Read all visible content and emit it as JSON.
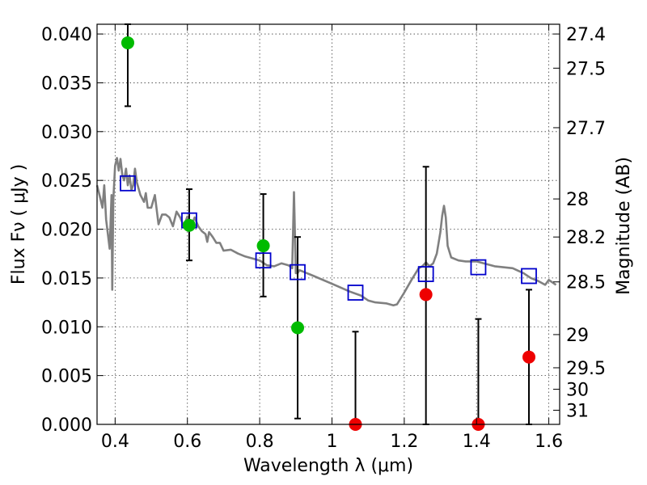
{
  "chart_data": {
    "type": "scatter",
    "title": "",
    "xlabel": "Wavelength  λ (μm)",
    "ylabel": "Flux  Fν  ( μJy )",
    "y2label": "Magnitude (AB)",
    "xlim": [
      0.35,
      1.63
    ],
    "ylim": [
      0.0,
      0.041
    ],
    "grid": true,
    "x_ticks": [
      0.4,
      0.6,
      0.8,
      1.0,
      1.2,
      1.4,
      1.6
    ],
    "x_tick_labels": [
      "0.4",
      "0.6",
      "0.8",
      "1",
      "1.2",
      "1.4",
      "1.6"
    ],
    "y_ticks": [
      0.0,
      0.005,
      0.01,
      0.015,
      0.02,
      0.025,
      0.03,
      0.035,
      0.04
    ],
    "y_tick_labels": [
      "0.000",
      "0.005",
      "0.010",
      "0.015",
      "0.020",
      "0.025",
      "0.030",
      "0.035",
      "0.040"
    ],
    "mag_ticks": [
      {
        "label": "27.4",
        "flux": 0.04
      },
      {
        "label": "27.5",
        "flux": 0.0365
      },
      {
        "label": "27.7",
        "flux": 0.0304
      },
      {
        "label": "28",
        "flux": 0.0231
      },
      {
        "label": "28.2",
        "flux": 0.0192
      },
      {
        "label": "28.5",
        "flux": 0.0146
      },
      {
        "label": "29",
        "flux": 0.0092
      },
      {
        "label": "29.5",
        "flux": 0.0058
      },
      {
        "label": "30",
        "flux": 0.0036
      },
      {
        "label": "31",
        "flux": 0.00145
      }
    ],
    "series": [
      {
        "kind": "model_spectrum",
        "color": "#808080",
        "x": [
          0.35,
          0.36,
          0.365,
          0.37,
          0.375,
          0.38,
          0.385,
          0.39,
          0.392,
          0.395,
          0.4,
          0.405,
          0.41,
          0.415,
          0.42,
          0.425,
          0.43,
          0.435,
          0.44,
          0.445,
          0.45,
          0.455,
          0.46,
          0.47,
          0.48,
          0.485,
          0.49,
          0.5,
          0.51,
          0.52,
          0.53,
          0.54,
          0.55,
          0.56,
          0.57,
          0.58,
          0.59,
          0.6,
          0.61,
          0.62,
          0.63,
          0.64,
          0.65,
          0.655,
          0.66,
          0.67,
          0.68,
          0.69,
          0.7,
          0.72,
          0.74,
          0.76,
          0.78,
          0.8,
          0.82,
          0.84,
          0.86,
          0.88,
          0.89,
          0.895,
          0.9,
          0.905,
          0.91,
          0.95,
          1.0,
          1.05,
          1.08,
          1.1,
          1.12,
          1.15,
          1.17,
          1.18,
          1.2,
          1.22,
          1.24,
          1.25,
          1.26,
          1.27,
          1.28,
          1.29,
          1.3,
          1.305,
          1.31,
          1.315,
          1.32,
          1.33,
          1.35,
          1.37,
          1.4,
          1.45,
          1.5,
          1.53,
          1.55,
          1.57,
          1.59,
          1.6,
          1.62
        ],
        "y": [
          0.0245,
          0.023,
          0.0222,
          0.0245,
          0.021,
          0.0195,
          0.018,
          0.0235,
          0.0138,
          0.023,
          0.0265,
          0.0273,
          0.026,
          0.0272,
          0.0255,
          0.025,
          0.0262,
          0.0245,
          0.0255,
          0.024,
          0.0245,
          0.0262,
          0.0248,
          0.0235,
          0.0228,
          0.0237,
          0.0222,
          0.0222,
          0.0235,
          0.0205,
          0.0215,
          0.0215,
          0.0212,
          0.0203,
          0.0218,
          0.0212,
          0.0203,
          0.0213,
          0.0203,
          0.0212,
          0.0203,
          0.0198,
          0.0195,
          0.0187,
          0.0197,
          0.0192,
          0.0186,
          0.0186,
          0.0178,
          0.0179,
          0.0175,
          0.0172,
          0.017,
          0.0168,
          0.0163,
          0.0162,
          0.0165,
          0.0163,
          0.016,
          0.0238,
          0.0155,
          0.0155,
          0.0158,
          0.0152,
          0.0144,
          0.0136,
          0.0132,
          0.0127,
          0.0125,
          0.0124,
          0.0122,
          0.0123,
          0.0135,
          0.0148,
          0.016,
          0.0162,
          0.0166,
          0.0162,
          0.0165,
          0.0175,
          0.0197,
          0.0214,
          0.0224,
          0.0212,
          0.0183,
          0.0171,
          0.0168,
          0.0167,
          0.0167,
          0.0162,
          0.016,
          0.0155,
          0.015,
          0.0147,
          0.0143,
          0.0148,
          0.0143
        ]
      },
      {
        "kind": "model_photometry",
        "marker": "open-square",
        "color": "#0000cc",
        "x": [
          0.435,
          0.605,
          0.81,
          0.905,
          1.065,
          1.26,
          1.405,
          1.545
        ],
        "y": [
          0.0247,
          0.0209,
          0.0168,
          0.0156,
          0.0135,
          0.0154,
          0.0161,
          0.0152
        ]
      },
      {
        "kind": "detections",
        "marker": "filled-circle",
        "color": "#00bb00",
        "x": [
          0.435,
          0.605,
          0.81,
          0.905
        ],
        "y": [
          0.0391,
          0.0204,
          0.0183,
          0.0099
        ],
        "yerr_low": [
          0.0326,
          0.0168,
          0.0131,
          0.0006
        ],
        "yerr_high": [
          0.041,
          0.0241,
          0.0236,
          0.0192
        ]
      },
      {
        "kind": "non_detections",
        "marker": "filled-circle",
        "color": "#ee0000",
        "x": [
          1.065,
          1.26,
          1.405,
          1.545
        ],
        "y": [
          0.0,
          0.0133,
          0.0,
          0.0069
        ],
        "yerr_low": [
          0.0,
          0.0,
          0.0,
          0.0
        ],
        "yerr_high": [
          0.0095,
          0.0264,
          0.0108,
          0.0138
        ]
      }
    ]
  }
}
